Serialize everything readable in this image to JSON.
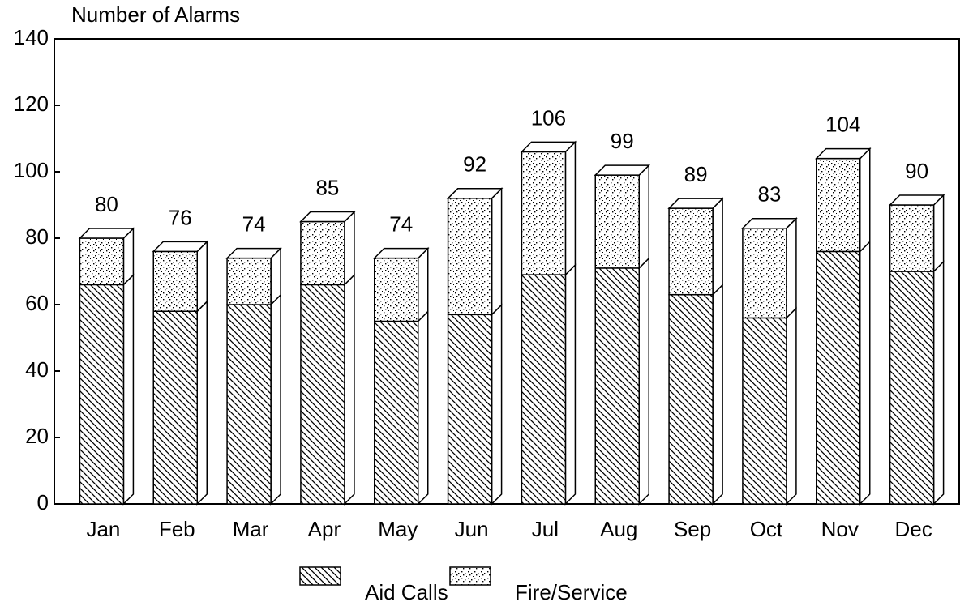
{
  "chart_data": {
    "type": "bar",
    "stacked": true,
    "y_label": "Number of Alarms",
    "categories": [
      "Jan",
      "Feb",
      "Mar",
      "Apr",
      "May",
      "Jun",
      "Jul",
      "Aug",
      "Sep",
      "Oct",
      "Nov",
      "Dec"
    ],
    "series": [
      {
        "name": "Aid Calls",
        "color": "#000000",
        "pattern": "hatch",
        "values": [
          66,
          58,
          60,
          66,
          55,
          57,
          69,
          71,
          63,
          56,
          76,
          70
        ]
      },
      {
        "name": "Fire/Service",
        "color": "#000000",
        "pattern": "dots",
        "values": [
          14,
          18,
          14,
          19,
          19,
          35,
          37,
          28,
          26,
          27,
          28,
          20
        ]
      }
    ],
    "totals": [
      80,
      76,
      74,
      85,
      74,
      92,
      106,
      99,
      89,
      83,
      104,
      90
    ],
    "ylim": [
      0,
      140
    ],
    "yticks": [
      0,
      20,
      40,
      60,
      80,
      100,
      120,
      140
    ],
    "grid": false
  }
}
